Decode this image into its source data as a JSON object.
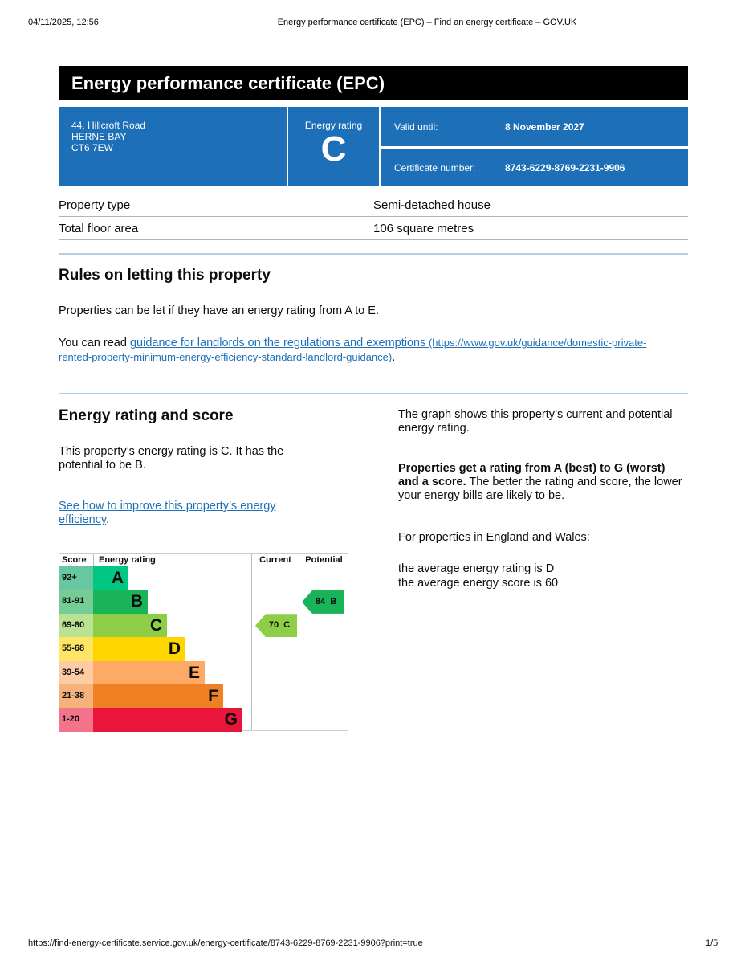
{
  "browser": {
    "datetime": "04/11/2025, 12:56",
    "page_title": "Energy performance certificate (EPC) – Find an energy certificate – GOV.UK",
    "url": "https://find-energy-certificate.service.gov.uk/energy-certificate/8743-6229-8769-2231-9906?print=true",
    "page_number": "1/5"
  },
  "title": "Energy performance certificate (EPC)",
  "address": {
    "line1": "44, Hillcroft Road",
    "line2": "HERNE BAY",
    "postcode": "CT6 7EW"
  },
  "rating": {
    "label": "Energy rating",
    "value": "C"
  },
  "valid": {
    "label": "Valid until:",
    "value": "8 November 2027"
  },
  "certificate": {
    "label": "Certificate number:",
    "value": "8743-6229-8769-2231-9906"
  },
  "property": [
    {
      "k": "Property type",
      "v": "Semi-detached house"
    },
    {
      "k": "Total floor area",
      "v": "106 square metres"
    }
  ],
  "letting": {
    "heading": "Rules on letting this property",
    "p1": "Properties can be let if they have an energy rating from A to E.",
    "p2_pre": "You can read ",
    "link": "guidance for landlords on the regulations and exemptions",
    "link_url": " (https://www.gov.uk/guidance/domestic-private-rented-property-minimum-energy-efficiency-standard-landlord-guidance)",
    "p2_post": "."
  },
  "score_section": {
    "heading": "Energy rating and score",
    "p1": "This property’s energy rating is C. It has the potential to be B.",
    "link": "See how to improve this property’s energy efficiency",
    "link_post": ".",
    "right_p1": "The graph shows this property’s current and potential energy rating.",
    "right_bold": "Properties get a rating from A (best) to G (worst) and a score.",
    "right_rest": " The better the rating and score, the lower your energy bills are likely to be.",
    "right_p3": "For properties in England and Wales:",
    "avg1": "the average energy rating is D",
    "avg2": "the average energy score is 60"
  },
  "chart_data": {
    "type": "table",
    "headers": [
      "Score",
      "Energy rating",
      "Current",
      "Potential"
    ],
    "bands": [
      {
        "score": "92+",
        "letter": "A",
        "color": "#00c781",
        "light": "#66c7a0"
      },
      {
        "score": "81-91",
        "letter": "B",
        "color": "#19b459",
        "light": "#75cc94"
      },
      {
        "score": "69-80",
        "letter": "C",
        "color": "#8dce46",
        "light": "#bbe293"
      },
      {
        "score": "55-68",
        "letter": "D",
        "color": "#ffd500",
        "light": "#ffe566"
      },
      {
        "score": "39-54",
        "letter": "E",
        "color": "#fcaa65",
        "light": "#fdcca3"
      },
      {
        "score": "21-38",
        "letter": "F",
        "color": "#ef8023",
        "light": "#f5b37b"
      },
      {
        "score": "1-20",
        "letter": "G",
        "color": "#e9153b",
        "light": "#f2738a"
      }
    ],
    "current": {
      "score": 70,
      "letter": "C",
      "label": "70  C",
      "color": "#8dce46"
    },
    "potential": {
      "score": 84,
      "letter": "B",
      "label": "84  B",
      "color": "#19b459"
    }
  }
}
